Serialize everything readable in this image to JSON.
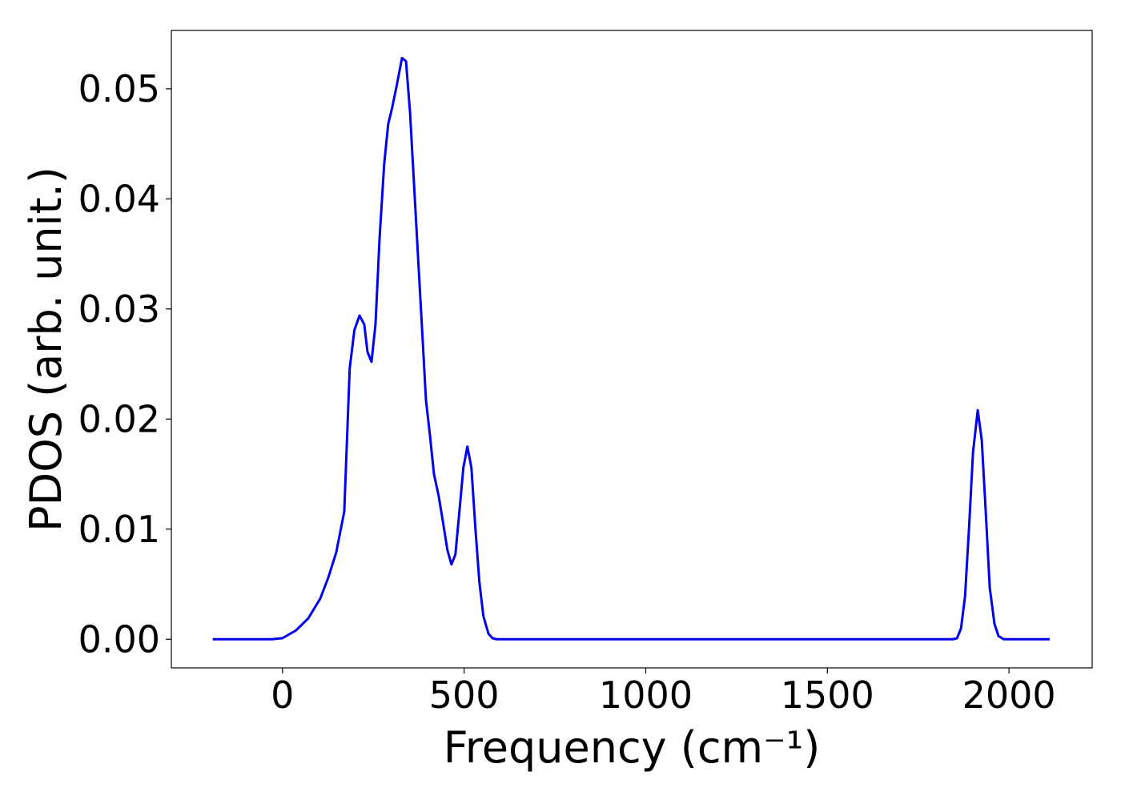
{
  "chart_data": {
    "type": "line",
    "xlabel": "Frequency (cm⁻¹)",
    "ylabel": "PDOS (arb. unit.)",
    "xlim": [
      -306,
      2229
    ],
    "ylim": [
      -0.0026,
      0.0553
    ],
    "xticks": [
      0,
      500,
      1000,
      1500,
      2000
    ],
    "yticks": [
      {
        "value": 0,
        "label": "0.00"
      },
      {
        "value": 0.01,
        "label": "0.01"
      },
      {
        "value": 0.02,
        "label": "0.02"
      },
      {
        "value": 0.03,
        "label": "0.03"
      },
      {
        "value": 0.04,
        "label": "0.04"
      },
      {
        "value": 0.05,
        "label": "0.05"
      }
    ],
    "grid": false,
    "x": [
      -192,
      -29,
      0,
      37,
      71,
      104,
      126,
      148,
      170,
      185,
      198,
      212,
      225,
      234,
      245,
      256,
      267,
      280,
      291,
      302,
      315,
      329,
      340,
      351,
      362,
      373,
      384,
      395,
      406,
      417,
      430,
      441,
      454,
      465,
      476,
      487,
      498,
      509,
      520,
      531,
      542,
      553,
      567,
      578,
      589,
      1846,
      1857,
      1868,
      1879,
      1890,
      1901,
      1914,
      1925,
      1936,
      1947,
      1960,
      1971,
      1985,
      2112
    ],
    "series": [
      {
        "color": "#0000ee",
        "values": [
          0,
          0,
          0.0001,
          0.0008,
          0.0019,
          0.0037,
          0.0056,
          0.0079,
          0.0116,
          0.0246,
          0.0281,
          0.0294,
          0.0286,
          0.0261,
          0.0252,
          0.0286,
          0.0363,
          0.0432,
          0.0468,
          0.0483,
          0.0504,
          0.0528,
          0.0525,
          0.0479,
          0.0414,
          0.0348,
          0.0283,
          0.0217,
          0.0185,
          0.015,
          0.013,
          0.0108,
          0.0081,
          0.0068,
          0.0077,
          0.0116,
          0.0156,
          0.0175,
          0.0156,
          0.0101,
          0.0052,
          0.0021,
          0.0005,
          0.0001,
          0,
          0,
          0.0001,
          0.001,
          0.0039,
          0.0101,
          0.017,
          0.0208,
          0.0181,
          0.0116,
          0.0047,
          0.0014,
          0.0003,
          0,
          0
        ]
      }
    ]
  }
}
